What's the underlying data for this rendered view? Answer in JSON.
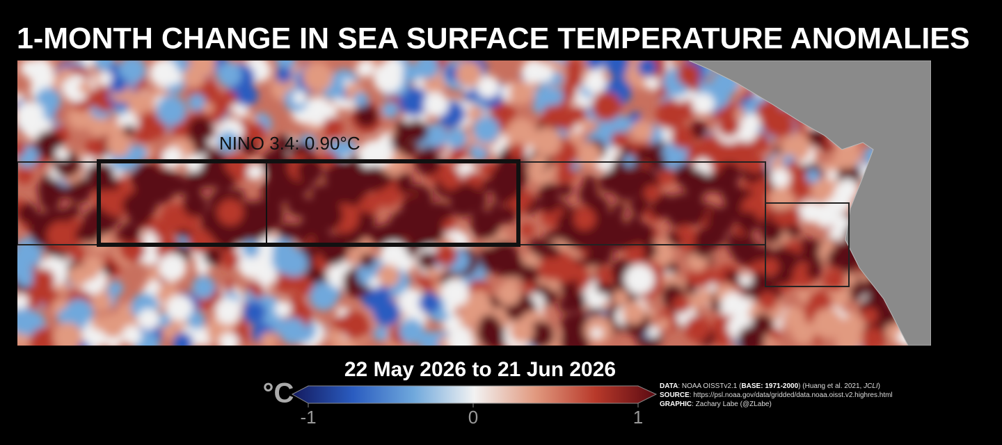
{
  "header": {
    "title": "1-MONTH CHANGE IN SEA SURFACE TEMPERATURE ANOMALIES"
  },
  "map": {
    "annotation": "NINO 3.4: 0.90°C",
    "period": "22 May 2026 to 21 Jun 2026"
  },
  "colorbar": {
    "unit": "°C",
    "lim": [
      -1,
      1
    ],
    "ticks": [
      -1,
      0,
      1
    ],
    "colors": [
      "#141a5e",
      "#2a5cc0",
      "#6fa8dc",
      "#f2f2f2",
      "#e19a80",
      "#b8392a",
      "#5a0a12"
    ]
  },
  "credits": [
    {
      "label": "DATA",
      "text": ": NOAA OISSTv2.1 (",
      "bold": "BASE: 1971-2000",
      "rest": ") (Huang et al. 2021, ",
      "italic": "JCLI",
      "end": ")"
    },
    {
      "label": "SOURCE",
      "text": ": https://psl.noaa.gov/data/gridded/data.noaa.oisst.v2.highres.html"
    },
    {
      "label": "GRAPHIC",
      "text": ": Zachary Labe (@ZLabe)"
    }
  ]
}
